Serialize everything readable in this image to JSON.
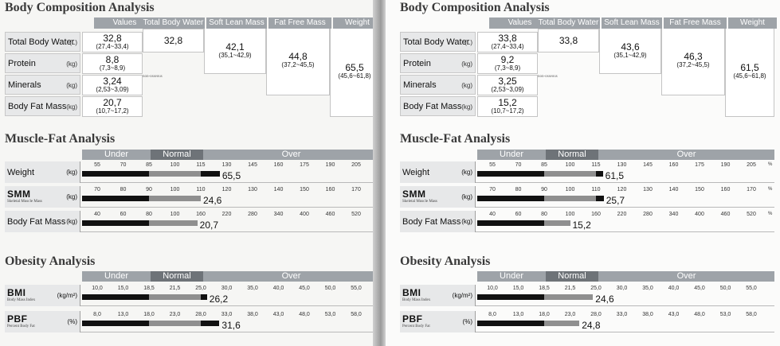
{
  "pages": [
    {
      "titles": {
        "body": "Body Composition Analysis",
        "mf": "Muscle-Fat Analysis",
        "ob": "Obesity Analysis"
      },
      "headers": [
        "Values",
        "Total Body Water",
        "Soft Lean Mass",
        "Fat Free Mass",
        "Weight"
      ],
      "rows": [
        {
          "label": "Total Body Water",
          "unit": "(L)"
        },
        {
          "label": "Protein",
          "unit": "(kg)"
        },
        {
          "label": "Minerals",
          "unit": "(kg)"
        },
        {
          "label": "Body Fat Mass",
          "unit": "(kg)"
        }
      ],
      "values": [
        {
          "v": "32,8",
          "r": "(27,4~33,4)"
        },
        {
          "v": "8,8",
          "r": "(7,3~8,9)"
        },
        {
          "v": "3,24",
          "r": "(2,53~3,09)"
        },
        {
          "v": "20,7",
          "r": "(10,7~17,2)"
        }
      ],
      "tbw": "32,8",
      "slm": {
        "v": "42,1",
        "r": "(35,1~42,9)"
      },
      "ffm": {
        "v": "44,8",
        "r": "(37,2~45,5)"
      },
      "weight": {
        "v": "65,5",
        "r": "(45,6~61,8)"
      },
      "nonosseous": "non-osseous",
      "bands": {
        "under": "Under",
        "normal": "Normal",
        "over": "Over"
      },
      "mf": [
        {
          "label": "Weight",
          "unit": "(kg)",
          "ticks": [
            "55",
            "70",
            "85",
            "100",
            "115",
            "130",
            "145",
            "160",
            "175",
            "190",
            "205"
          ],
          "value": "65,5",
          "pct": 126
        },
        {
          "label": "SMM",
          "sub": "Skeletal Muscle Mass",
          "unit": "(kg)",
          "ticks": [
            "70",
            "80",
            "90",
            "100",
            "110",
            "120",
            "130",
            "140",
            "150",
            "160",
            "170"
          ],
          "value": "24,6",
          "pct": 110
        },
        {
          "label": "Body Fat Mass",
          "unit": "(kg)",
          "ticks": [
            "40",
            "60",
            "80",
            "100",
            "160",
            "220",
            "280",
            "340",
            "400",
            "460",
            "520"
          ],
          "value": "20,7",
          "pct": 152
        }
      ],
      "ob": [
        {
          "label": "BMI",
          "sub": "Body Mass Index",
          "unit": "(kg/m²)",
          "ticks": [
            "10,0",
            "15,0",
            "18,5",
            "21,5",
            "25,0",
            "30,0",
            "35,0",
            "40,0",
            "45,0",
            "50,0",
            "55,0"
          ],
          "value": "26,2",
          "pct": "26,2"
        },
        {
          "label": "PBF",
          "sub": "Percent Body Fat",
          "unit": "(%)",
          "ticks": [
            "8,0",
            "13,0",
            "18,0",
            "23,0",
            "28,0",
            "33,0",
            "38,0",
            "43,0",
            "48,0",
            "53,0",
            "58,0"
          ],
          "value": "31,6",
          "pct": "31,6"
        }
      ],
      "pctsym": "%"
    },
    {
      "titles": {
        "body": "Body Composition Analysis",
        "mf": "Muscle-Fat Analysis",
        "ob": "Obesity Analysis"
      },
      "headers": [
        "Values",
        "Total Body Water",
        "Soft Lean Mass",
        "Fat Free Mass",
        "Weight"
      ],
      "rows": [
        {
          "label": "Total Body Water",
          "unit": "(L)"
        },
        {
          "label": "Protein",
          "unit": "(kg)"
        },
        {
          "label": "Minerals",
          "unit": "(kg)"
        },
        {
          "label": "Body Fat Mass",
          "unit": "(kg)"
        }
      ],
      "values": [
        {
          "v": "33,8",
          "r": "(27,4~33,4)"
        },
        {
          "v": "9,2",
          "r": "(7,3~8,9)"
        },
        {
          "v": "3,25",
          "r": "(2,53~3,09)"
        },
        {
          "v": "15,2",
          "r": "(10,7~17,2)"
        }
      ],
      "tbw": "33,8",
      "slm": {
        "v": "43,6",
        "r": "(35,1~42,9)"
      },
      "ffm": {
        "v": "46,3",
        "r": "(37,2~45,5)"
      },
      "weight": {
        "v": "61,5",
        "r": "(45,6~61,8)"
      },
      "nonosseous": "non-osseous",
      "bands": {
        "under": "Under",
        "normal": "Normal",
        "over": "Over"
      },
      "mf": [
        {
          "label": "Weight",
          "unit": "(kg)",
          "ticks": [
            "55",
            "70",
            "85",
            "100",
            "115",
            "130",
            "145",
            "160",
            "175",
            "190",
            "205"
          ],
          "value": "61,5",
          "pct": 119
        },
        {
          "label": "SMM",
          "sub": "Skeletal Muscle Mass",
          "unit": "(kg)",
          "ticks": [
            "70",
            "80",
            "90",
            "100",
            "110",
            "120",
            "130",
            "140",
            "150",
            "160",
            "170"
          ],
          "value": "25,7",
          "pct": 113
        },
        {
          "label": "Body Fat Mass",
          "unit": "(kg)",
          "ticks": [
            "40",
            "60",
            "80",
            "100",
            "160",
            "220",
            "280",
            "340",
            "400",
            "460",
            "520"
          ],
          "value": "15,2",
          "pct": 100
        }
      ],
      "ob": [
        {
          "label": "BMI",
          "sub": "Body Mass Index",
          "unit": "(kg/m²)",
          "ticks": [
            "10,0",
            "15,0",
            "18,5",
            "21,5",
            "25,0",
            "30,0",
            "35,0",
            "40,0",
            "45,0",
            "50,0",
            "55,0"
          ],
          "value": "24,6",
          "pct": "24,6"
        },
        {
          "label": "PBF",
          "sub": "Percent Body Fat",
          "unit": "(%)",
          "ticks": [
            "8,0",
            "13,0",
            "18,0",
            "23,0",
            "28,0",
            "33,0",
            "38,0",
            "43,0",
            "48,0",
            "53,0",
            "58,0"
          ],
          "value": "24,8",
          "pct": "24,8"
        }
      ],
      "pctsym": "%"
    }
  ]
}
